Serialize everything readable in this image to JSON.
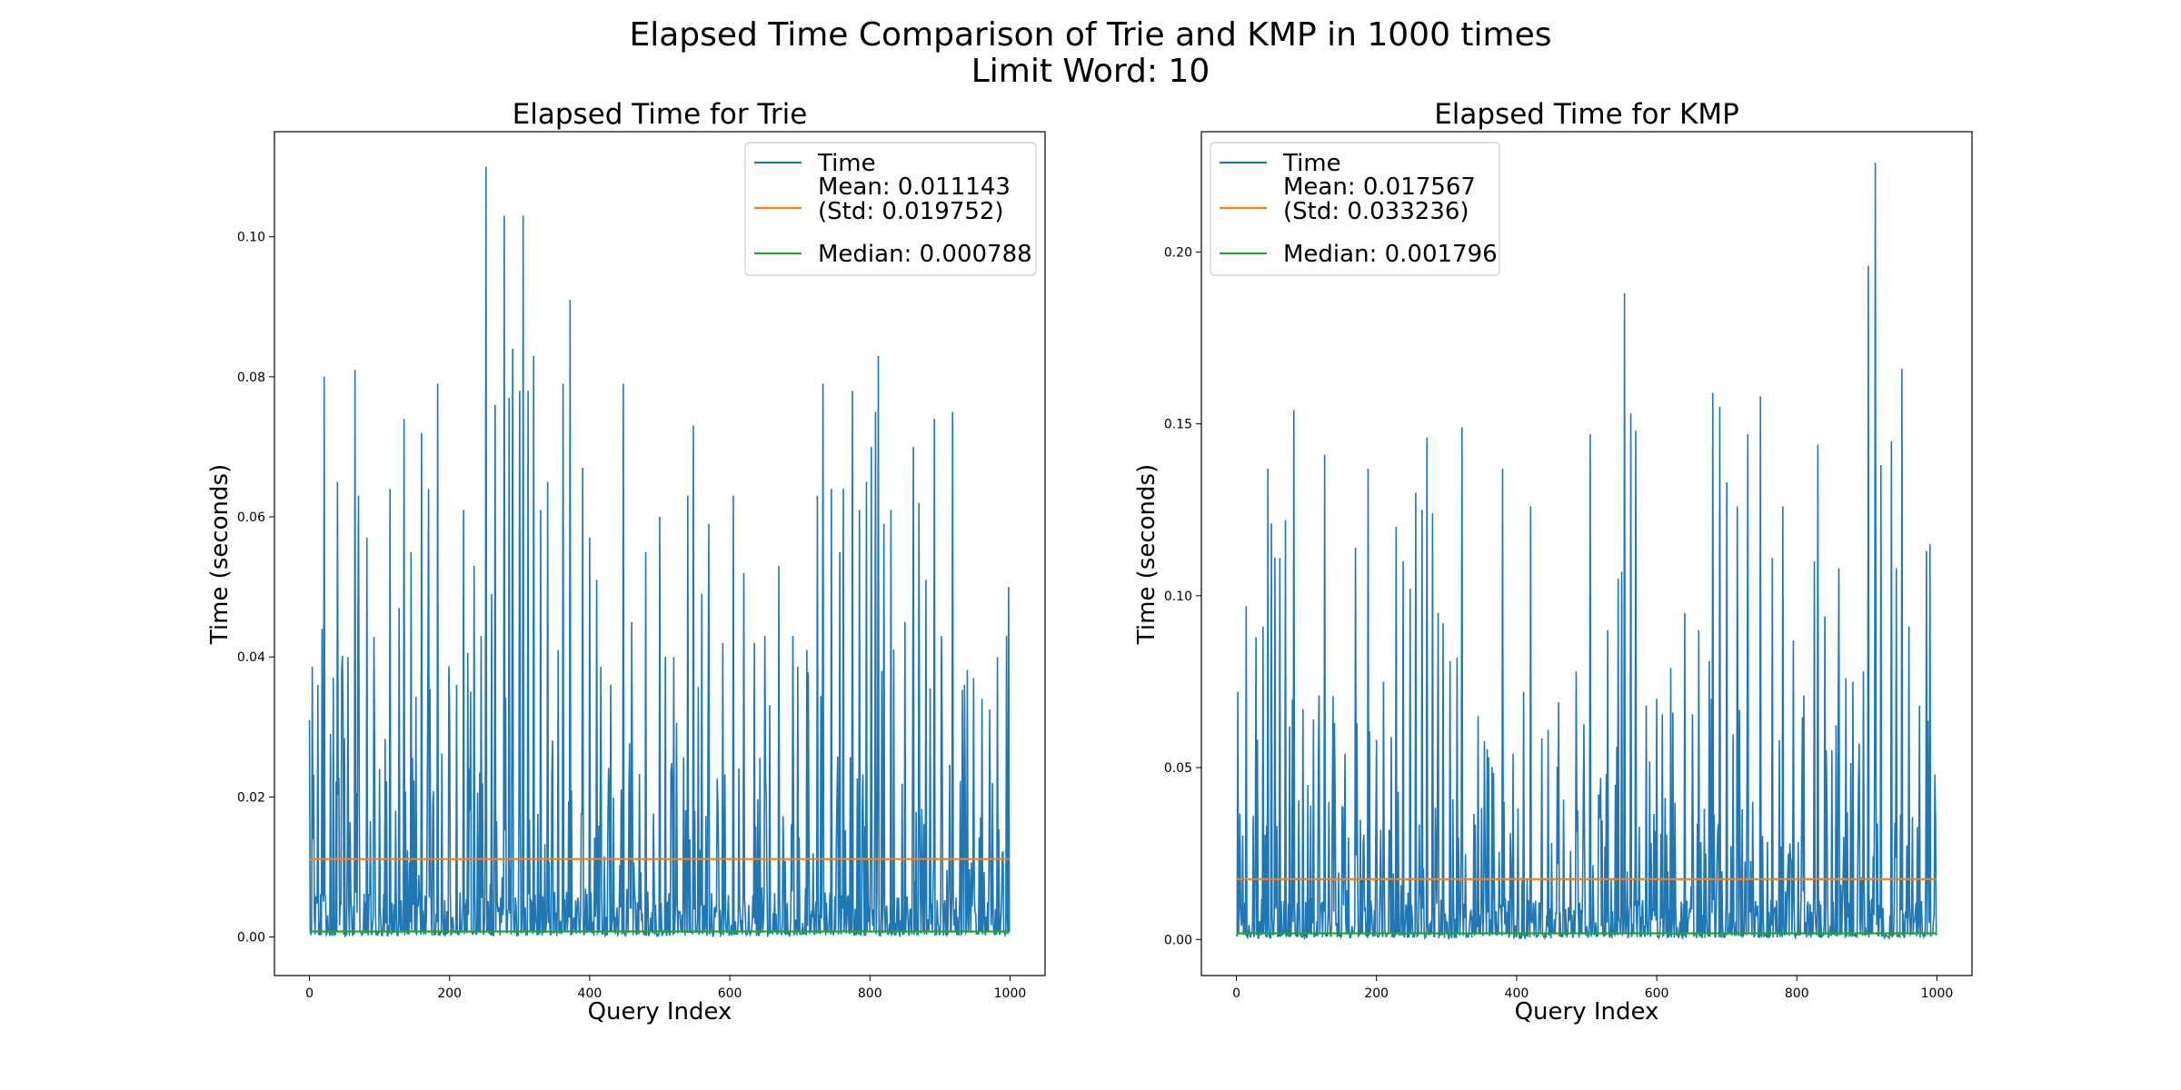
{
  "figure": {
    "suptitle_line1": "Elapsed Time Comparison of Trie and KMP in 1000 times",
    "suptitle_line2": "Limit Word: 10"
  },
  "colors": {
    "time": "#1f77b4",
    "mean": "#ff7f0e",
    "median": "#2ca02c"
  },
  "chart_data": [
    {
      "type": "line",
      "title": "Elapsed Time for Trie",
      "xlabel": "Query Index",
      "ylabel": "Time (seconds)",
      "xlim": [
        -50,
        1050
      ],
      "ylim": [
        -0.0055,
        0.115
      ],
      "xticks": [
        0,
        200,
        400,
        600,
        800,
        1000
      ],
      "yticks": [
        0.0,
        0.02,
        0.04,
        0.06,
        0.08,
        0.1
      ],
      "ytick_labels": [
        "0.00",
        "0.02",
        "0.04",
        "0.06",
        "0.08",
        "0.10"
      ],
      "grid": false,
      "legend_position": "top-right",
      "n_points": 1000,
      "series": [
        {
          "name": "Time",
          "kind": "noisy",
          "mean": 0.011143,
          "std": 0.019752,
          "median": 0.000788,
          "peaks": [
            [
              0,
              0.031
            ],
            [
              5,
              0.014
            ],
            [
              12,
              0.036
            ],
            [
              18,
              0.044
            ],
            [
              21,
              0.08
            ],
            [
              30,
              0.029
            ],
            [
              40,
              0.065
            ],
            [
              48,
              0.031
            ],
            [
              55,
              0.04
            ],
            [
              65,
              0.081
            ],
            [
              70,
              0.063
            ],
            [
              82,
              0.057
            ],
            [
              100,
              0.024
            ],
            [
              115,
              0.064
            ],
            [
              128,
              0.047
            ],
            [
              135,
              0.074
            ],
            [
              145,
              0.055
            ],
            [
              160,
              0.072
            ],
            [
              170,
              0.064
            ],
            [
              183,
              0.079
            ],
            [
              200,
              0.032
            ],
            [
              210,
              0.036
            ],
            [
              220,
              0.061
            ],
            [
              235,
              0.053
            ],
            [
              245,
              0.043
            ],
            [
              252,
              0.11
            ],
            [
              260,
              0.049
            ],
            [
              265,
              0.076
            ],
            [
              278,
              0.103
            ],
            [
              285,
              0.077
            ],
            [
              290,
              0.084
            ],
            [
              300,
              0.078
            ],
            [
              305,
              0.103
            ],
            [
              312,
              0.078
            ],
            [
              320,
              0.083
            ],
            [
              330,
              0.061
            ],
            [
              340,
              0.065
            ],
            [
              355,
              0.041
            ],
            [
              362,
              0.079
            ],
            [
              372,
              0.091
            ],
            [
              390,
              0.067
            ],
            [
              400,
              0.057
            ],
            [
              410,
              0.051
            ],
            [
              430,
              0.036
            ],
            [
              448,
              0.079
            ],
            [
              460,
              0.045
            ],
            [
              480,
              0.055
            ],
            [
              500,
              0.06
            ],
            [
              520,
              0.04
            ],
            [
              540,
              0.063
            ],
            [
              548,
              0.073
            ],
            [
              560,
              0.049
            ],
            [
              570,
              0.059
            ],
            [
              590,
              0.042
            ],
            [
              605,
              0.063
            ],
            [
              620,
              0.052
            ],
            [
              635,
              0.042
            ],
            [
              650,
              0.043
            ],
            [
              670,
              0.053
            ],
            [
              690,
              0.043
            ],
            [
              710,
              0.041
            ],
            [
              725,
              0.063
            ],
            [
              733,
              0.079
            ],
            [
              745,
              0.064
            ],
            [
              757,
              0.055
            ],
            [
              762,
              0.064
            ],
            [
              775,
              0.078
            ],
            [
              785,
              0.061
            ],
            [
              795,
              0.065
            ],
            [
              802,
              0.07
            ],
            [
              808,
              0.075
            ],
            [
              812,
              0.083
            ],
            [
              820,
              0.059
            ],
            [
              830,
              0.061
            ],
            [
              850,
              0.045
            ],
            [
              862,
              0.07
            ],
            [
              870,
              0.062
            ],
            [
              880,
              0.051
            ],
            [
              892,
              0.074
            ],
            [
              902,
              0.043
            ],
            [
              918,
              0.075
            ],
            [
              935,
              0.036
            ],
            [
              948,
              0.037
            ],
            [
              960,
              0.034
            ],
            [
              975,
              0.022
            ],
            [
              982,
              0.04
            ],
            [
              995,
              0.043
            ],
            [
              998,
              0.05
            ]
          ]
        },
        {
          "name": "Mean: 0.011143\n(Std: 0.019752)",
          "kind": "hline",
          "value": 0.011143
        },
        {
          "name": "Median: 0.000788",
          "kind": "hline",
          "value": 0.000788
        }
      ],
      "legend": [
        "Time",
        "Mean: 0.011143",
        "(Std: 0.019752)",
        "Median: 0.000788"
      ]
    },
    {
      "type": "line",
      "title": "Elapsed Time for KMP",
      "xlabel": "Query Index",
      "ylabel": "Time (seconds)",
      "xlim": [
        -50,
        1050
      ],
      "ylim": [
        -0.0105,
        0.235
      ],
      "xticks": [
        0,
        200,
        400,
        600,
        800,
        1000
      ],
      "yticks": [
        0.0,
        0.05,
        0.1,
        0.15,
        0.2
      ],
      "ytick_labels": [
        "0.00",
        "0.05",
        "0.10",
        "0.15",
        "0.20"
      ],
      "grid": false,
      "legend_position": "top-left",
      "n_points": 1000,
      "series": [
        {
          "name": "Time",
          "kind": "noisy",
          "mean": 0.017567,
          "std": 0.033236,
          "median": 0.001796,
          "peaks": [
            [
              2,
              0.072
            ],
            [
              14,
              0.097
            ],
            [
              28,
              0.088
            ],
            [
              38,
              0.091
            ],
            [
              45,
              0.137
            ],
            [
              50,
              0.121
            ],
            [
              55,
              0.111
            ],
            [
              62,
              0.111
            ],
            [
              70,
              0.122
            ],
            [
              82,
              0.154
            ],
            [
              95,
              0.067
            ],
            [
              110,
              0.064
            ],
            [
              118,
              0.071
            ],
            [
              126,
              0.141
            ],
            [
              140,
              0.063
            ],
            [
              155,
              0.054
            ],
            [
              170,
              0.114
            ],
            [
              188,
              0.137
            ],
            [
              200,
              0.058
            ],
            [
              210,
              0.075
            ],
            [
              228,
              0.12
            ],
            [
              238,
              0.11
            ],
            [
              248,
              0.102
            ],
            [
              256,
              0.13
            ],
            [
              265,
              0.125
            ],
            [
              272,
              0.146
            ],
            [
              280,
              0.124
            ],
            [
              288,
              0.095
            ],
            [
              295,
              0.092
            ],
            [
              305,
              0.081
            ],
            [
              315,
              0.082
            ],
            [
              322,
              0.149
            ],
            [
              345,
              0.065
            ],
            [
              360,
              0.053
            ],
            [
              380,
              0.137
            ],
            [
              395,
              0.054
            ],
            [
              410,
              0.072
            ],
            [
              420,
              0.126
            ],
            [
              445,
              0.061
            ],
            [
              460,
              0.069
            ],
            [
              485,
              0.078
            ],
            [
              505,
              0.147
            ],
            [
              520,
              0.047
            ],
            [
              530,
              0.09
            ],
            [
              545,
              0.105
            ],
            [
              550,
              0.107
            ],
            [
              554,
              0.188
            ],
            [
              563,
              0.153
            ],
            [
              570,
              0.148
            ],
            [
              585,
              0.068
            ],
            [
              600,
              0.07
            ],
            [
              620,
              0.079
            ],
            [
              640,
              0.095
            ],
            [
              660,
              0.09
            ],
            [
              675,
              0.081
            ],
            [
              680,
              0.159
            ],
            [
              690,
              0.155
            ],
            [
              700,
              0.133
            ],
            [
              715,
              0.126
            ],
            [
              730,
              0.147
            ],
            [
              748,
              0.158
            ],
            [
              765,
              0.111
            ],
            [
              780,
              0.126
            ],
            [
              795,
              0.087
            ],
            [
              810,
              0.071
            ],
            [
              825,
              0.11
            ],
            [
              830,
              0.144
            ],
            [
              840,
              0.094
            ],
            [
              860,
              0.108
            ],
            [
              870,
              0.076
            ],
            [
              880,
              0.075
            ],
            [
              895,
              0.078
            ],
            [
              902,
              0.196
            ],
            [
              912,
              0.226
            ],
            [
              920,
              0.138
            ],
            [
              935,
              0.145
            ],
            [
              942,
              0.108
            ],
            [
              950,
              0.166
            ],
            [
              960,
              0.091
            ],
            [
              975,
              0.068
            ],
            [
              985,
              0.113
            ],
            [
              990,
              0.115
            ],
            [
              997,
              0.048
            ]
          ]
        },
        {
          "name": "Mean: 0.017567\n(Std: 0.033236)",
          "kind": "hline",
          "value": 0.017567
        },
        {
          "name": "Median: 0.001796",
          "kind": "hline",
          "value": 0.001796
        }
      ],
      "legend": [
        "Time",
        "Mean: 0.017567",
        "(Std: 0.033236)",
        "Median: 0.001796"
      ]
    }
  ]
}
